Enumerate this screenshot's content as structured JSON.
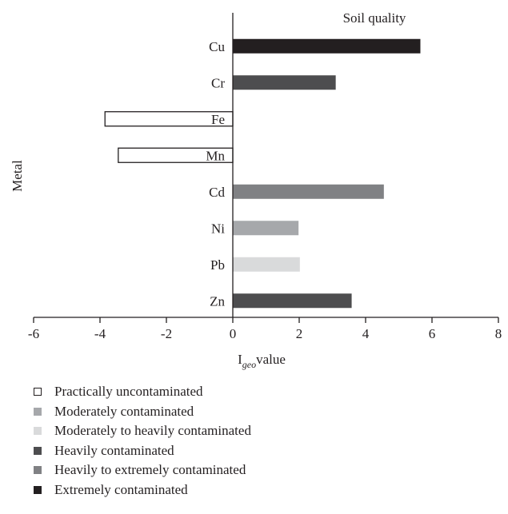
{
  "chart_data": {
    "type": "bar",
    "orientation": "horizontal",
    "title": "Soil quality",
    "xlabel_main": "I",
    "xlabel_sub": "geo",
    "xlabel_rest": "value",
    "ylabel": "Metal",
    "xlim": [
      -6,
      8
    ],
    "xticks": [
      "-6",
      "-4",
      "-2",
      "0",
      "2",
      "4",
      "6",
      "8"
    ],
    "grid": false,
    "legend_position": "bottom-left",
    "categories": [
      "Cu",
      "Cr",
      "Fe",
      "Mn",
      "Cd",
      "Ni",
      "Pb",
      "Zn"
    ],
    "values": [
      5.65,
      3.1,
      -3.85,
      -3.45,
      4.55,
      1.98,
      2.02,
      3.58
    ],
    "bar_classes": [
      "Extremely contaminated",
      "Heavily contaminated",
      "Practically uncontaminated",
      "Practically uncontaminated",
      "Heavily to extremely contaminated",
      "Moderately contaminated",
      "Moderately to heavily contaminated",
      "Heavily contaminated"
    ],
    "legend": [
      {
        "label": "Practically uncontaminated",
        "color": "#ffffff",
        "outlined": true
      },
      {
        "label": "Moderately contaminated",
        "color": "#a6a8ab",
        "outlined": false
      },
      {
        "label": "Moderately to heavily contaminated",
        "color": "#d9dadb",
        "outlined": false
      },
      {
        "label": "Heavily contaminated",
        "color": "#4d4d4f",
        "outlined": false
      },
      {
        "label": "Heavily to extremely contaminated",
        "color": "#808184",
        "outlined": false
      },
      {
        "label": "Extremely contaminated",
        "color": "#231f20",
        "outlined": false
      }
    ]
  }
}
